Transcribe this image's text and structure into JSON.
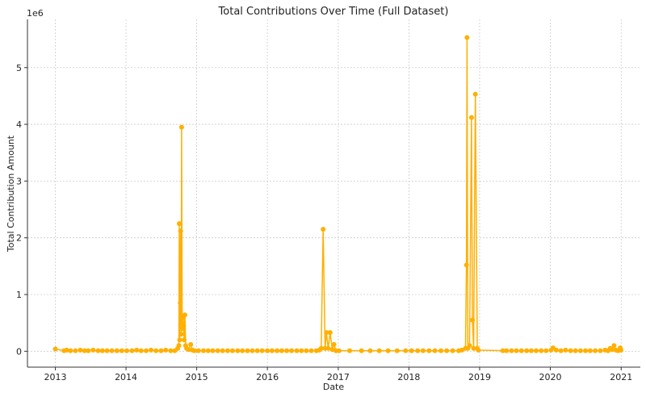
{
  "chart_data": {
    "type": "line",
    "title": "Total Contributions Over Time (Full Dataset)",
    "xlabel": "Date",
    "ylabel": "Total Contribution Amount",
    "y_multiplier_label": "1e6",
    "x_ticks": [
      "2013",
      "2014",
      "2015",
      "2016",
      "2017",
      "2018",
      "2019",
      "2020",
      "2021"
    ],
    "y_ticks": [
      "0",
      "1",
      "2",
      "3",
      "4",
      "5"
    ],
    "xlim": [
      "2012-08-10",
      "2021-04-10"
    ],
    "ylim": [
      -0.28,
      5.85
    ],
    "grid": true,
    "color": "#FFB000",
    "series": [
      {
        "x": [
          "2013-01-01",
          "2013-02-15",
          "2013-03-01",
          "2013-03-20",
          "2013-04-15",
          "2013-05-10",
          "2013-06-01",
          "2013-06-20",
          "2013-07-15",
          "2013-08-10",
          "2013-09-01",
          "2013-09-25",
          "2013-10-20",
          "2013-11-15",
          "2013-12-10",
          "2014-01-05",
          "2014-02-01",
          "2014-02-25",
          "2014-03-20",
          "2014-04-15",
          "2014-05-10",
          "2014-06-05",
          "2014-07-01",
          "2014-07-25",
          "2014-08-20",
          "2014-09-10",
          "2014-09-25",
          "2014-10-01",
          "2014-10-03",
          "2014-10-05",
          "2014-10-08",
          "2014-10-10",
          "2014-10-13",
          "2014-10-15",
          "2014-10-18",
          "2014-10-20",
          "2014-10-23",
          "2014-10-25",
          "2014-10-28",
          "2014-11-01",
          "2014-11-05",
          "2014-11-10",
          "2014-11-20",
          "2014-12-01",
          "2014-12-10",
          "2014-12-20",
          "2015-01-10",
          "2015-02-05",
          "2015-03-01",
          "2015-03-25",
          "2015-04-20",
          "2015-05-15",
          "2015-06-10",
          "2015-07-05",
          "2015-08-01",
          "2015-08-25",
          "2015-09-20",
          "2015-10-15",
          "2015-11-10",
          "2015-12-05",
          "2016-01-01",
          "2016-01-25",
          "2016-02-20",
          "2016-03-15",
          "2016-04-10",
          "2016-05-05",
          "2016-06-01",
          "2016-06-25",
          "2016-07-20",
          "2016-08-15",
          "2016-09-10",
          "2016-09-25",
          "2016-10-05",
          "2016-10-15",
          "2016-10-25",
          "2016-11-01",
          "2016-11-10",
          "2016-11-20",
          "2016-12-01",
          "2016-12-10",
          "2016-12-20",
          "2017-01-05",
          "2017-03-01",
          "2017-05-01",
          "2017-06-15",
          "2017-08-01",
          "2017-09-15",
          "2017-11-01",
          "2017-12-15",
          "2018-01-15",
          "2018-02-15",
          "2018-03-15",
          "2018-04-15",
          "2018-05-15",
          "2018-06-15",
          "2018-07-15",
          "2018-08-15",
          "2018-09-15",
          "2018-10-01",
          "2018-10-20",
          "2018-10-25",
          "2018-10-28",
          "2018-11-01",
          "2018-11-10",
          "2018-11-20",
          "2018-11-25",
          "2018-12-01",
          "2018-12-10",
          "2018-12-20",
          "2018-12-25",
          "2019-05-01",
          "2019-05-20",
          "2019-06-15",
          "2019-07-10",
          "2019-08-05",
          "2019-09-01",
          "2019-09-25",
          "2019-10-20",
          "2019-11-15",
          "2019-12-10",
          "2020-01-05",
          "2020-01-15",
          "2020-02-01",
          "2020-02-25",
          "2020-03-20",
          "2020-04-15",
          "2020-05-10",
          "2020-06-05",
          "2020-07-01",
          "2020-07-25",
          "2020-08-20",
          "2020-09-15",
          "2020-10-10",
          "2020-10-25",
          "2020-11-05",
          "2020-11-15",
          "2020-11-25",
          "2020-12-05",
          "2020-12-15",
          "2020-12-22",
          "2020-12-27",
          "2020-12-31"
        ],
        "y": [
          0.04,
          0.01,
          0.02,
          0.01,
          0.01,
          0.02,
          0.01,
          0.01,
          0.02,
          0.01,
          0.01,
          0.01,
          0.01,
          0.01,
          0.01,
          0.01,
          0.01,
          0.02,
          0.01,
          0.01,
          0.02,
          0.01,
          0.01,
          0.02,
          0.01,
          0.01,
          0.05,
          0.1,
          2.25,
          0.2,
          0.85,
          2.12,
          0.3,
          3.95,
          0.5,
          0.4,
          0.6,
          0.45,
          0.2,
          0.64,
          0.1,
          0.05,
          0.03,
          0.12,
          0.02,
          0.01,
          0.01,
          0.01,
          0.01,
          0.01,
          0.01,
          0.01,
          0.01,
          0.01,
          0.01,
          0.01,
          0.01,
          0.01,
          0.01,
          0.01,
          0.01,
          0.01,
          0.01,
          0.01,
          0.01,
          0.01,
          0.01,
          0.01,
          0.01,
          0.01,
          0.01,
          0.02,
          0.05,
          2.15,
          0.05,
          0.33,
          0.05,
          0.33,
          0.03,
          0.12,
          0.01,
          0.01,
          0.01,
          0.01,
          0.01,
          0.01,
          0.01,
          0.01,
          0.01,
          0.01,
          0.01,
          0.01,
          0.01,
          0.01,
          0.01,
          0.01,
          0.01,
          0.01,
          0.02,
          0.05,
          1.52,
          5.53,
          0.05,
          0.1,
          4.12,
          0.55,
          0.05,
          4.53,
          0.05,
          0.02,
          0.01,
          0.01,
          0.01,
          0.01,
          0.01,
          0.01,
          0.01,
          0.01,
          0.01,
          0.01,
          0.02,
          0.06,
          0.02,
          0.01,
          0.02,
          0.01,
          0.01,
          0.01,
          0.01,
          0.01,
          0.01,
          0.01,
          0.02,
          0.01,
          0.05,
          0.03,
          0.1,
          0.02,
          0.01,
          0.02,
          0.06,
          0.02
        ]
      }
    ]
  }
}
